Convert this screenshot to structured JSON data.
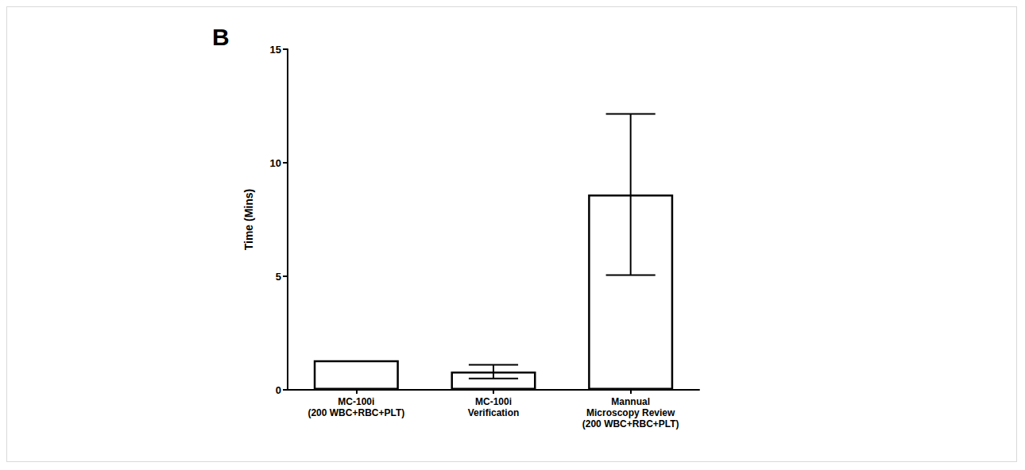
{
  "chart_data": {
    "type": "bar",
    "title": "B",
    "y_label": "Time (Mins)",
    "categories": [
      "MC-100i\n(200 WBC+RBC+PLT)",
      "MC-100i\nVerification",
      "Mannual\nMicroscopy Review\n(200 WBC+RBC+PLT)"
    ],
    "values": [
      1.3,
      0.8,
      8.6
    ],
    "errors": [
      null,
      0.3,
      3.55
    ],
    "color": "#ffffff",
    "ylim": [
      0,
      15
    ],
    "yticks": [
      0,
      5,
      10,
      15
    ],
    "grid": false
  }
}
